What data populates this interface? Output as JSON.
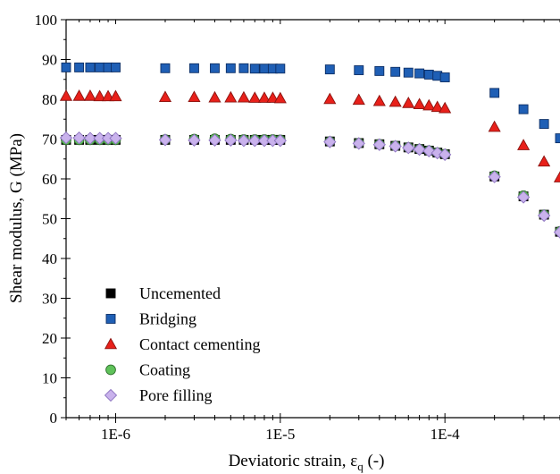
{
  "chart_data": {
    "type": "scatter",
    "xlabel_main": "Deviatoric strain, ε",
    "xlabel_sub": "q",
    "xlabel_tail": " (-)",
    "ylabel": "Shear modulus, G (MPa)",
    "x_scale": "log",
    "xlim": [
      5e-07,
      0.0005
    ],
    "ylim": [
      0,
      100
    ],
    "grid": false,
    "legend_position": "bottom-left",
    "y_ticks": [
      0,
      10,
      20,
      30,
      40,
      50,
      60,
      70,
      80,
      90,
      100
    ],
    "x_ticks": [
      {
        "value": 1e-06,
        "label": "1E-6"
      },
      {
        "value": 1e-05,
        "label": "1E-5"
      },
      {
        "value": 0.0001,
        "label": "1E-4"
      }
    ],
    "series": [
      {
        "name": "Uncemented",
        "marker": "square",
        "color": "#000000",
        "stroke": "#000000",
        "points": [
          [
            5e-07,
            69.8
          ],
          [
            6e-07,
            69.8
          ],
          [
            7e-07,
            69.8
          ],
          [
            8e-07,
            69.8
          ],
          [
            9e-07,
            69.8
          ],
          [
            1e-06,
            69.8
          ],
          [
            2e-06,
            69.8
          ],
          [
            3e-06,
            69.8
          ],
          [
            4e-06,
            69.8
          ],
          [
            5e-06,
            69.8
          ],
          [
            6e-06,
            69.8
          ],
          [
            7e-06,
            69.8
          ],
          [
            8e-06,
            69.8
          ],
          [
            9e-06,
            69.8
          ],
          [
            1e-05,
            69.8
          ],
          [
            2e-05,
            69.4
          ],
          [
            3e-05,
            69.0
          ],
          [
            4e-05,
            68.7
          ],
          [
            5e-05,
            68.3
          ],
          [
            6e-05,
            67.9
          ],
          [
            7e-05,
            67.5
          ],
          [
            8e-05,
            67.1
          ],
          [
            9e-05,
            66.6
          ],
          [
            0.0001,
            66.2
          ],
          [
            0.0002,
            60.6
          ],
          [
            0.0003,
            55.6
          ],
          [
            0.0004,
            51.0
          ],
          [
            0.0005,
            46.7
          ]
        ]
      },
      {
        "name": "Bridging",
        "marker": "square",
        "color": "#1f5fb5",
        "stroke": "#0d2f66",
        "points": [
          [
            5e-07,
            88.0
          ],
          [
            6e-07,
            88.0
          ],
          [
            7e-07,
            88.0
          ],
          [
            8e-07,
            88.0
          ],
          [
            9e-07,
            88.0
          ],
          [
            1e-06,
            88.0
          ],
          [
            2e-06,
            87.8
          ],
          [
            3e-06,
            87.8
          ],
          [
            4e-06,
            87.8
          ],
          [
            5e-06,
            87.8
          ],
          [
            6e-06,
            87.8
          ],
          [
            7e-06,
            87.7
          ],
          [
            8e-06,
            87.7
          ],
          [
            9e-06,
            87.7
          ],
          [
            1e-05,
            87.7
          ],
          [
            2e-05,
            87.5
          ],
          [
            3e-05,
            87.3
          ],
          [
            4e-05,
            87.1
          ],
          [
            5e-05,
            86.9
          ],
          [
            6e-05,
            86.7
          ],
          [
            7e-05,
            86.5
          ],
          [
            8e-05,
            86.2
          ],
          [
            9e-05,
            85.9
          ],
          [
            0.0001,
            85.5
          ],
          [
            0.0002,
            81.6
          ],
          [
            0.0003,
            77.5
          ],
          [
            0.0004,
            73.8
          ],
          [
            0.0005,
            70.2
          ]
        ]
      },
      {
        "name": "Contact cementing",
        "marker": "triangle",
        "color": "#e8201a",
        "stroke": "#8a1410",
        "points": [
          [
            5e-07,
            80.8
          ],
          [
            6e-07,
            80.8
          ],
          [
            7e-07,
            80.8
          ],
          [
            8e-07,
            80.7
          ],
          [
            9e-07,
            80.7
          ],
          [
            1e-06,
            80.7
          ],
          [
            2e-06,
            80.5
          ],
          [
            3e-06,
            80.5
          ],
          [
            4e-06,
            80.4
          ],
          [
            5e-06,
            80.4
          ],
          [
            6e-06,
            80.4
          ],
          [
            7e-06,
            80.3
          ],
          [
            8e-06,
            80.3
          ],
          [
            9e-06,
            80.3
          ],
          [
            1e-05,
            80.2
          ],
          [
            2e-05,
            80.0
          ],
          [
            3e-05,
            79.8
          ],
          [
            4e-05,
            79.5
          ],
          [
            5e-05,
            79.3
          ],
          [
            6e-05,
            79.0
          ],
          [
            7e-05,
            78.7
          ],
          [
            8e-05,
            78.4
          ],
          [
            9e-05,
            78.0
          ],
          [
            0.0001,
            77.7
          ],
          [
            0.0002,
            73.0
          ],
          [
            0.0003,
            68.4
          ],
          [
            0.0004,
            64.3
          ],
          [
            0.0005,
            60.3
          ]
        ]
      },
      {
        "name": "Coating",
        "marker": "circle",
        "color": "#5fc25a",
        "stroke": "#2f6e2c",
        "points": [
          [
            5e-07,
            69.8
          ],
          [
            6e-07,
            69.8
          ],
          [
            7e-07,
            69.8
          ],
          [
            8e-07,
            69.8
          ],
          [
            9e-07,
            69.8
          ],
          [
            1e-06,
            69.8
          ],
          [
            2e-06,
            69.9
          ],
          [
            3e-06,
            70.0
          ],
          [
            4e-06,
            70.1
          ],
          [
            5e-06,
            70.0
          ],
          [
            6e-06,
            69.9
          ],
          [
            7e-06,
            69.9
          ],
          [
            8e-06,
            69.9
          ],
          [
            9e-06,
            69.9
          ],
          [
            1e-05,
            69.8
          ],
          [
            2e-05,
            69.4
          ],
          [
            3e-05,
            69.0
          ],
          [
            4e-05,
            68.7
          ],
          [
            5e-05,
            68.3
          ],
          [
            6e-05,
            67.9
          ],
          [
            7e-05,
            67.5
          ],
          [
            8e-05,
            67.1
          ],
          [
            9e-05,
            66.6
          ],
          [
            0.0001,
            66.2
          ],
          [
            0.0002,
            60.8
          ],
          [
            0.0003,
            55.8
          ],
          [
            0.0004,
            51.0
          ],
          [
            0.0005,
            46.8
          ]
        ]
      },
      {
        "name": "Pore filling",
        "marker": "diamond",
        "color": "#c9b2ec",
        "stroke": "#8d74c0",
        "points": [
          [
            5e-07,
            70.3
          ],
          [
            6e-07,
            70.3
          ],
          [
            7e-07,
            70.2
          ],
          [
            8e-07,
            70.2
          ],
          [
            9e-07,
            70.2
          ],
          [
            1e-06,
            70.2
          ],
          [
            2e-06,
            69.8
          ],
          [
            3e-06,
            69.7
          ],
          [
            4e-06,
            69.7
          ],
          [
            5e-06,
            69.7
          ],
          [
            6e-06,
            69.6
          ],
          [
            7e-06,
            69.6
          ],
          [
            8e-06,
            69.6
          ],
          [
            9e-06,
            69.6
          ],
          [
            1e-05,
            69.6
          ],
          [
            2e-05,
            69.3
          ],
          [
            3e-05,
            68.9
          ],
          [
            4e-05,
            68.6
          ],
          [
            5e-05,
            68.2
          ],
          [
            6e-05,
            67.8
          ],
          [
            7e-05,
            67.4
          ],
          [
            8e-05,
            67.0
          ],
          [
            9e-05,
            66.5
          ],
          [
            0.0001,
            66.1
          ],
          [
            0.0002,
            60.5
          ],
          [
            0.0003,
            55.4
          ],
          [
            0.0004,
            50.8
          ],
          [
            0.0005,
            46.6
          ]
        ]
      }
    ]
  }
}
